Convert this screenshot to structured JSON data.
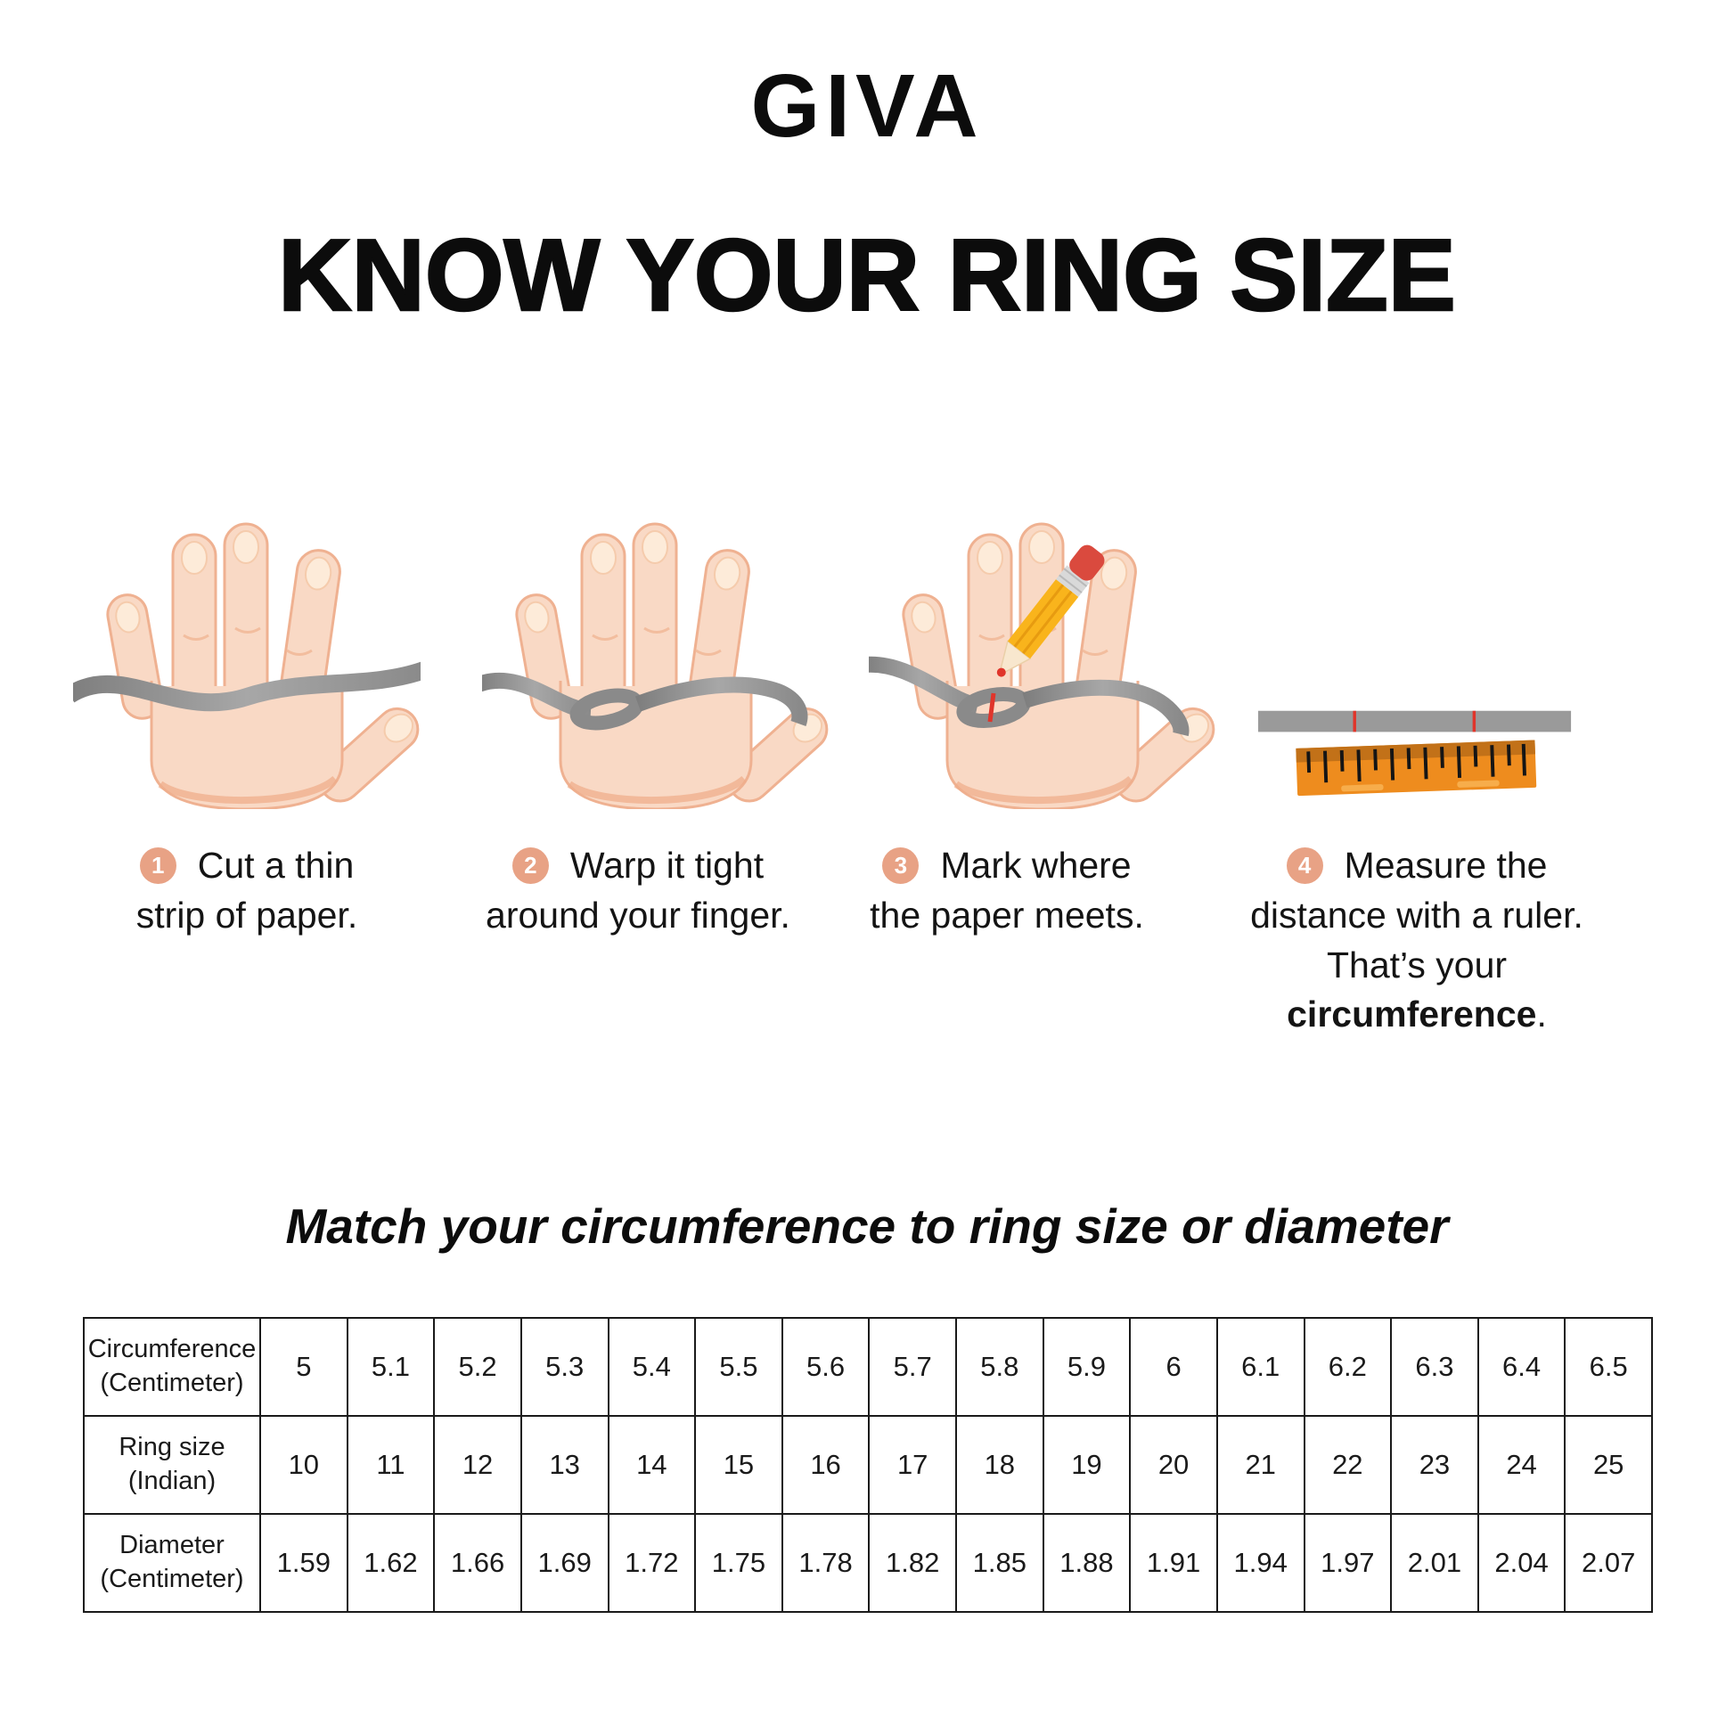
{
  "brand": "GIVA",
  "title": "KNOW YOUR RING SIZE",
  "steps": [
    {
      "number": "1",
      "lines": [
        "Cut a thin",
        "strip of paper."
      ]
    },
    {
      "number": "2",
      "lines": [
        "Warp it tight",
        "around your finger."
      ]
    },
    {
      "number": "3",
      "lines": [
        "Mark where",
        "the paper meets."
      ]
    },
    {
      "number": "4",
      "lines": [
        "Measure the",
        "distance with a ruler."
      ],
      "line3": {
        "prefix": "That’s your ",
        "bold": "circumference",
        "suffix": "."
      }
    }
  ],
  "icons": {
    "step1": "hand-with-paper-strip-icon",
    "step2": "hand-strip-wrapped-icon",
    "step3": "hand-strip-marked-pencil-icon",
    "step4": "paper-strip-and-ruler-icon"
  },
  "chart_data": {
    "type": "table",
    "title": "Match your circumference to ring size or diameter",
    "row_headers": [
      [
        "Circumference",
        "(Centimeter)"
      ],
      [
        "Ring size",
        "(Indian)"
      ],
      [
        "Diameter",
        "(Centimeter)"
      ]
    ],
    "rows": [
      [
        "5",
        "5.1",
        "5.2",
        "5.3",
        "5.4",
        "5.5",
        "5.6",
        "5.7",
        "5.8",
        "5.9",
        "6",
        "6.1",
        "6.2",
        "6.3",
        "6.4",
        "6.5"
      ],
      [
        "10",
        "11",
        "12",
        "13",
        "14",
        "15",
        "16",
        "17",
        "18",
        "19",
        "20",
        "21",
        "22",
        "23",
        "24",
        "25"
      ],
      [
        "1.59",
        "1.62",
        "1.66",
        "1.69",
        "1.72",
        "1.75",
        "1.78",
        "1.82",
        "1.85",
        "1.88",
        "1.91",
        "1.94",
        "1.97",
        "2.01",
        "2.04",
        "2.07"
      ]
    ]
  },
  "colors": {
    "badge": "#E8A285",
    "skin": "#F9D9C5",
    "skin_outline": "#EFB191",
    "strip_gray": "#919191",
    "ruler_orange": "#EE8C1E",
    "ruler_dark": "#C27118",
    "mark_red": "#E0352B"
  }
}
